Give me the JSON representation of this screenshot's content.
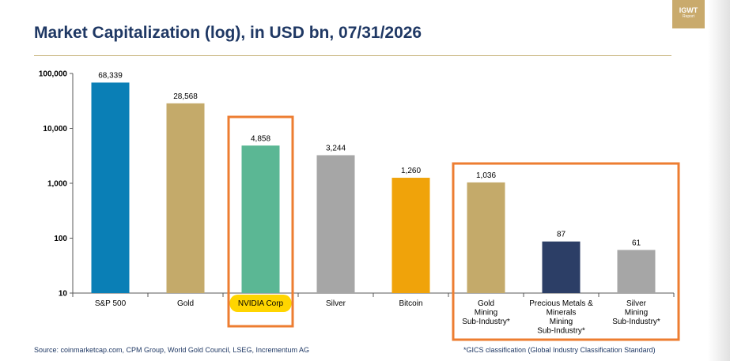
{
  "header": {
    "title": "Market Capitalization (log), in USD bn, 07/31/2026",
    "logo_line1": "IGWT",
    "logo_line2": "Report"
  },
  "footer": {
    "source": "Source: coinmarketcap.com, CPM Group, World Gold Council, LSEG, Incrementum AG",
    "note": "*GICS classification (Global Industry Classification Standard)"
  },
  "colors": {
    "title": "#1f3864",
    "highlight_box": "#ed7d31",
    "label_highlight": "#ffd500",
    "axis": "#595959"
  },
  "chart_data": {
    "type": "bar",
    "title": "Market Capitalization (log), in USD bn, 07/31/2026",
    "xlabel": "",
    "ylabel": "",
    "scale": "log",
    "ylim": [
      10,
      100000
    ],
    "y_ticks": [
      {
        "value": 10,
        "label": "10"
      },
      {
        "value": 100,
        "label": "100"
      },
      {
        "value": 1000,
        "label": "1,000"
      },
      {
        "value": 10000,
        "label": "10,000"
      },
      {
        "value": 100000,
        "label": "100,000"
      }
    ],
    "categories": [
      "S&P 500",
      "Gold",
      "NVIDIA Corp",
      "Silver",
      "Bitcoin",
      "Gold\nMining\nSub-Industry*",
      "Precious Metals &\nMinerals\nMining\nSub-Industry*",
      "Silver\nMining\nSub-Industry*"
    ],
    "values": [
      68339,
      28568,
      4858,
      3244,
      1260,
      1036,
      87,
      61
    ],
    "value_labels": [
      "68,339",
      "28,568",
      "4,858",
      "3,244",
      "1,260",
      "1,036",
      "87",
      "61"
    ],
    "bar_colors": [
      "#0a7fb6",
      "#c4aa6a",
      "#5bb794",
      "#a6a6a6",
      "#f0a30a",
      "#c4aa6a",
      "#2c3e66",
      "#a6a6a6"
    ],
    "highlighted_category": "NVIDIA Corp",
    "highlight_groups": [
      [
        2,
        2
      ],
      [
        5,
        7
      ]
    ],
    "grid": false,
    "legend": "none"
  }
}
